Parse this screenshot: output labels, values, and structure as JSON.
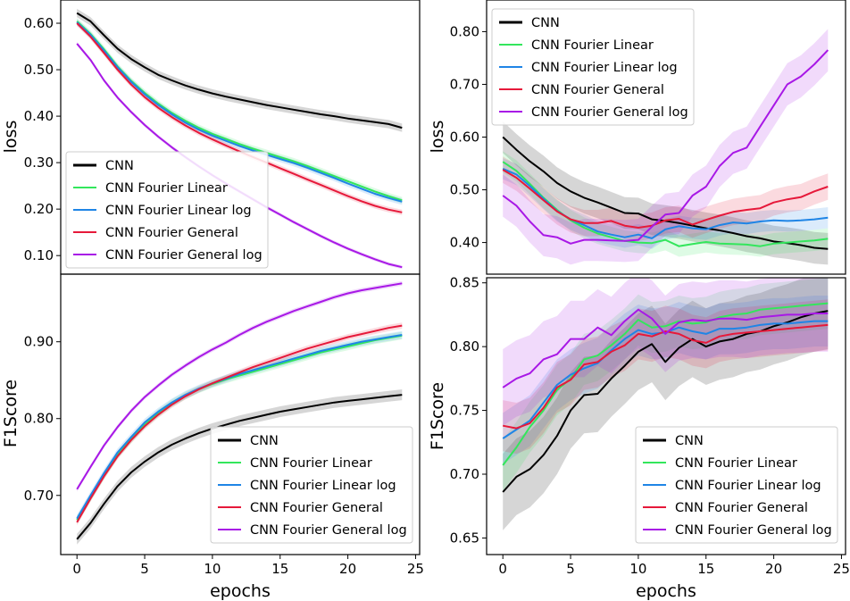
{
  "colors": {
    "CNN": "#000000",
    "CNN Fourier Linear": "#33e65c",
    "CNN Fourier Linear log": "#1f85e6",
    "CNN Fourier General": "#e6193a",
    "CNN Fourier General log": "#a818e6"
  },
  "chart_data": [
    {
      "id": "train-loss",
      "type": "line",
      "title": "",
      "xlabel": "",
      "ylabel": "loss",
      "xlim": [
        -1.2,
        25.3
      ],
      "ylim": [
        0.06,
        0.65
      ],
      "xticks": [],
      "yticks": [
        0.6,
        0.5,
        0.4,
        0.3,
        0.2,
        0.1
      ],
      "ytick_labels": [
        "0.60",
        "0.50",
        "0.40",
        "0.30",
        "0.20",
        "0.10"
      ],
      "legend": "lower-left",
      "series": [
        {
          "name": "CNN",
          "band": 0.009,
          "values": [
            0.622,
            0.604,
            0.574,
            0.545,
            0.523,
            0.505,
            0.489,
            0.477,
            0.466,
            0.457,
            0.449,
            0.442,
            0.436,
            0.43,
            0.424,
            0.419,
            0.414,
            0.409,
            0.404,
            0.4,
            0.395,
            0.391,
            0.387,
            0.383,
            0.375
          ]
        },
        {
          "name": "CNN Fourier Linear",
          "band": 0.007,
          "values": [
            0.604,
            0.577,
            0.544,
            0.507,
            0.476,
            0.45,
            0.427,
            0.407,
            0.39,
            0.375,
            0.362,
            0.351,
            0.34,
            0.33,
            0.321,
            0.312,
            0.303,
            0.293,
            0.282,
            0.271,
            0.26,
            0.249,
            0.238,
            0.228,
            0.219
          ]
        },
        {
          "name": "CNN Fourier Linear log",
          "band": 0.007,
          "values": [
            0.602,
            0.575,
            0.541,
            0.505,
            0.474,
            0.447,
            0.424,
            0.404,
            0.386,
            0.371,
            0.358,
            0.347,
            0.336,
            0.326,
            0.317,
            0.308,
            0.299,
            0.289,
            0.278,
            0.267,
            0.255,
            0.244,
            0.233,
            0.224,
            0.216
          ]
        },
        {
          "name": "CNN Fourier General",
          "band": 0.006,
          "values": [
            0.6,
            0.571,
            0.536,
            0.5,
            0.468,
            0.441,
            0.418,
            0.398,
            0.38,
            0.364,
            0.35,
            0.337,
            0.324,
            0.312,
            0.3,
            0.288,
            0.276,
            0.264,
            0.252,
            0.24,
            0.228,
            0.217,
            0.207,
            0.199,
            0.193
          ]
        },
        {
          "name": "CNN Fourier General log",
          "band": 0.004,
          "values": [
            0.556,
            0.521,
            0.477,
            0.44,
            0.409,
            0.381,
            0.356,
            0.333,
            0.312,
            0.292,
            0.273,
            0.255,
            0.238,
            0.221,
            0.204,
            0.188,
            0.172,
            0.157,
            0.142,
            0.128,
            0.115,
            0.103,
            0.092,
            0.082,
            0.075
          ]
        }
      ]
    },
    {
      "id": "val-loss",
      "type": "line",
      "title": "",
      "xlabel": "",
      "ylabel": "loss",
      "xlim": [
        -1.2,
        25.3
      ],
      "ylim": [
        0.34,
        0.86
      ],
      "xticks": [],
      "yticks": [
        0.8,
        0.7,
        0.6,
        0.5,
        0.4
      ],
      "ytick_labels": [
        "0.80",
        "0.70",
        "0.60",
        "0.50",
        "0.40"
      ],
      "legend": "upper-left",
      "series": [
        {
          "name": "CNN",
          "band": 0.03,
          "values": [
            0.6,
            0.576,
            0.554,
            0.535,
            0.513,
            0.497,
            0.485,
            0.476,
            0.466,
            0.456,
            0.455,
            0.444,
            0.441,
            0.437,
            0.432,
            0.427,
            0.423,
            0.418,
            0.412,
            0.408,
            0.402,
            0.399,
            0.395,
            0.39,
            0.388
          ]
        },
        {
          "name": "CNN Fourier Linear",
          "band": 0.02,
          "values": [
            0.553,
            0.536,
            0.511,
            0.485,
            0.462,
            0.442,
            0.428,
            0.417,
            0.41,
            0.403,
            0.4,
            0.399,
            0.405,
            0.393,
            0.397,
            0.401,
            0.398,
            0.397,
            0.396,
            0.393,
            0.398,
            0.4,
            0.402,
            0.404,
            0.407
          ]
        },
        {
          "name": "CNN Fourier Linear log",
          "band": 0.02,
          "values": [
            0.54,
            0.529,
            0.507,
            0.483,
            0.46,
            0.444,
            0.433,
            0.421,
            0.415,
            0.41,
            0.415,
            0.408,
            0.425,
            0.431,
            0.427,
            0.425,
            0.433,
            0.438,
            0.436,
            0.44,
            0.442,
            0.441,
            0.442,
            0.444,
            0.447
          ]
        },
        {
          "name": "CNN Fourier General",
          "band": 0.025,
          "values": [
            0.538,
            0.523,
            0.502,
            0.48,
            0.459,
            0.444,
            0.437,
            0.437,
            0.441,
            0.432,
            0.428,
            0.432,
            0.442,
            0.445,
            0.434,
            0.443,
            0.451,
            0.458,
            0.462,
            0.465,
            0.476,
            0.482,
            0.486,
            0.497,
            0.506
          ]
        },
        {
          "name": "CNN Fourier General log",
          "band": 0.04,
          "values": [
            0.489,
            0.47,
            0.44,
            0.414,
            0.41,
            0.398,
            0.405,
            0.405,
            0.404,
            0.403,
            0.405,
            0.43,
            0.453,
            0.456,
            0.489,
            0.506,
            0.545,
            0.57,
            0.58,
            0.62,
            0.66,
            0.7,
            0.715,
            0.738,
            0.765
          ]
        }
      ]
    },
    {
      "id": "train-f1",
      "type": "line",
      "title": "",
      "xlabel": "epochs",
      "ylabel": "F1Score",
      "xlim": [
        -1.2,
        25.3
      ],
      "ylim": [
        0.623,
        0.988
      ],
      "xticks": [
        0,
        5,
        10,
        15,
        20,
        25
      ],
      "xtick_labels": [
        "0",
        "5",
        "10",
        "15",
        "20",
        "25"
      ],
      "yticks": [
        0.9,
        0.8,
        0.7
      ],
      "ytick_labels": [
        "0.90",
        "0.80",
        "0.70"
      ],
      "legend": "lower-right",
      "series": [
        {
          "name": "CNN",
          "band": 0.007,
          "values": [
            0.643,
            0.664,
            0.689,
            0.712,
            0.73,
            0.744,
            0.756,
            0.766,
            0.774,
            0.781,
            0.787,
            0.792,
            0.797,
            0.801,
            0.805,
            0.809,
            0.812,
            0.815,
            0.818,
            0.821,
            0.823,
            0.825,
            0.827,
            0.829,
            0.831
          ]
        },
        {
          "name": "CNN Fourier Linear",
          "band": 0.005,
          "values": [
            0.668,
            0.697,
            0.726,
            0.753,
            0.773,
            0.792,
            0.807,
            0.82,
            0.83,
            0.838,
            0.845,
            0.851,
            0.856,
            0.861,
            0.866,
            0.871,
            0.876,
            0.881,
            0.886,
            0.89,
            0.894,
            0.898,
            0.902,
            0.905,
            0.908
          ]
        },
        {
          "name": "CNN Fourier Linear log",
          "band": 0.005,
          "values": [
            0.67,
            0.7,
            0.729,
            0.756,
            0.776,
            0.795,
            0.809,
            0.821,
            0.831,
            0.839,
            0.846,
            0.852,
            0.858,
            0.863,
            0.868,
            0.873,
            0.878,
            0.883,
            0.888,
            0.892,
            0.896,
            0.9,
            0.903,
            0.906,
            0.909
          ]
        },
        {
          "name": "CNN Fourier General",
          "band": 0.004,
          "values": [
            0.665,
            0.696,
            0.725,
            0.751,
            0.772,
            0.79,
            0.805,
            0.818,
            0.829,
            0.838,
            0.846,
            0.853,
            0.86,
            0.867,
            0.873,
            0.879,
            0.885,
            0.891,
            0.896,
            0.901,
            0.906,
            0.91,
            0.914,
            0.918,
            0.921
          ]
        },
        {
          "name": "CNN Fourier General log",
          "band": 0.003,
          "values": [
            0.708,
            0.737,
            0.765,
            0.789,
            0.81,
            0.828,
            0.843,
            0.857,
            0.869,
            0.88,
            0.89,
            0.899,
            0.909,
            0.918,
            0.926,
            0.933,
            0.94,
            0.946,
            0.952,
            0.958,
            0.963,
            0.967,
            0.97,
            0.973,
            0.976
          ]
        }
      ]
    },
    {
      "id": "val-f1",
      "type": "line",
      "title": "",
      "xlabel": "epochs",
      "ylabel": "F1Score",
      "xlim": [
        -1.2,
        25.3
      ],
      "ylim": [
        0.637,
        0.854
      ],
      "xticks": [
        0,
        5,
        10,
        15,
        20,
        25
      ],
      "xtick_labels": [
        "0",
        "5",
        "10",
        "15",
        "20",
        "25"
      ],
      "yticks": [
        0.85,
        0.8,
        0.75,
        0.7,
        0.65
      ],
      "ytick_labels": [
        "0.85",
        "0.80",
        "0.75",
        "0.70",
        "0.65"
      ],
      "legend": "lower-right",
      "series": [
        {
          "name": "CNN",
          "band": 0.03,
          "values": [
            0.686,
            0.698,
            0.704,
            0.715,
            0.73,
            0.75,
            0.762,
            0.763,
            0.775,
            0.785,
            0.796,
            0.802,
            0.788,
            0.799,
            0.806,
            0.8,
            0.804,
            0.806,
            0.81,
            0.812,
            0.816,
            0.819,
            0.823,
            0.826,
            0.828
          ]
        },
        {
          "name": "CNN Fourier Linear",
          "band": 0.02,
          "values": [
            0.707,
            0.721,
            0.737,
            0.75,
            0.766,
            0.775,
            0.79,
            0.793,
            0.801,
            0.81,
            0.821,
            0.815,
            0.816,
            0.82,
            0.818,
            0.819,
            0.823,
            0.825,
            0.826,
            0.829,
            0.83,
            0.831,
            0.832,
            0.833,
            0.834
          ]
        },
        {
          "name": "CNN Fourier Linear log",
          "band": 0.02,
          "values": [
            0.728,
            0.735,
            0.742,
            0.756,
            0.77,
            0.778,
            0.783,
            0.787,
            0.797,
            0.806,
            0.813,
            0.81,
            0.811,
            0.815,
            0.812,
            0.81,
            0.814,
            0.814,
            0.815,
            0.817,
            0.818,
            0.818,
            0.819,
            0.82,
            0.82
          ]
        },
        {
          "name": "CNN Fourier General",
          "band": 0.02,
          "values": [
            0.738,
            0.736,
            0.74,
            0.752,
            0.768,
            0.774,
            0.786,
            0.788,
            0.796,
            0.801,
            0.81,
            0.808,
            0.812,
            0.81,
            0.805,
            0.803,
            0.808,
            0.81,
            0.811,
            0.812,
            0.813,
            0.814,
            0.815,
            0.816,
            0.817
          ]
        },
        {
          "name": "CNN Fourier General log",
          "band": 0.03,
          "values": [
            0.768,
            0.775,
            0.779,
            0.79,
            0.794,
            0.806,
            0.806,
            0.815,
            0.809,
            0.82,
            0.829,
            0.822,
            0.81,
            0.819,
            0.821,
            0.82,
            0.822,
            0.822,
            0.821,
            0.823,
            0.824,
            0.825,
            0.825,
            0.826,
            0.826
          ]
        }
      ]
    }
  ]
}
